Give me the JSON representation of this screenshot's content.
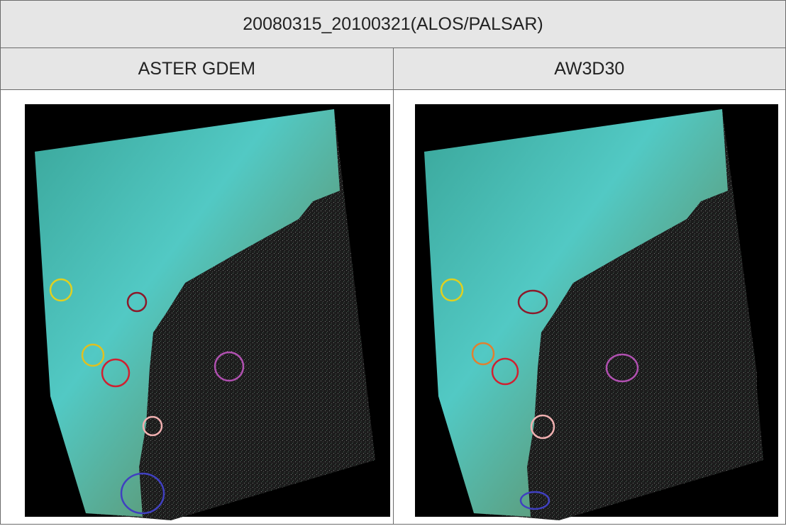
{
  "table": {
    "title": "20080315_20100321(ALOS/PALSAR)",
    "columns": [
      "ASTER GDEM",
      "AW3D30"
    ]
  }
}
